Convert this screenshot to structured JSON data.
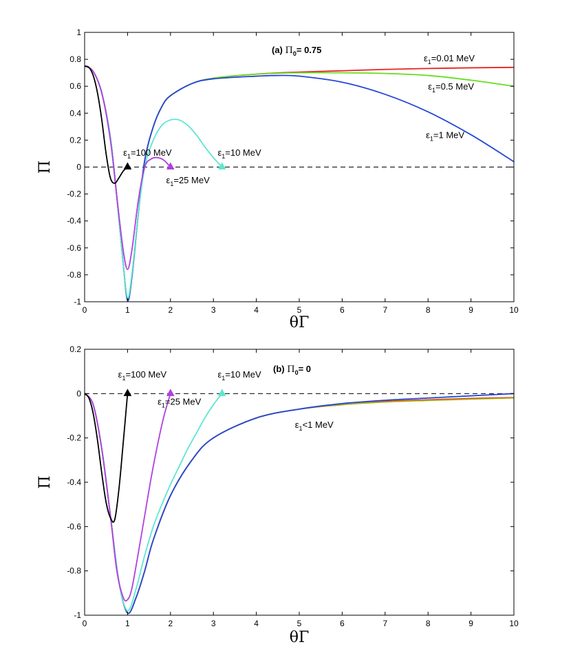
{
  "chart_data": [
    {
      "type": "line",
      "title": "(a) Π0= 0.75",
      "title_parts": {
        "prefix": "(a) ",
        "symbol": "Π",
        "sub": "0",
        "suffix": "= 0.75"
      },
      "xlabel": "θΓ",
      "ylabel": "Π",
      "xlim": [
        0,
        10
      ],
      "ylim": [
        -1,
        1
      ],
      "xticks": [
        "0",
        "1",
        "2",
        "3",
        "4",
        "5",
        "6",
        "7",
        "8",
        "9",
        "10"
      ],
      "yticks": [
        "-1",
        "-0.8",
        "-0.6",
        "-0.4",
        "-0.2",
        "0",
        "0.2",
        "0.4",
        "0.6",
        "0.8",
        "1"
      ],
      "grid": false,
      "reference_line": {
        "y": 0,
        "style": "dashed",
        "color": "#000000"
      },
      "series": [
        {
          "name": "ε1=0.01 MeV",
          "color": "#e8231f",
          "x": [
            0,
            0.2,
            0.4,
            0.6,
            0.75,
            0.9,
            1.0,
            1.1,
            1.25,
            1.4,
            1.6,
            1.8,
            2.0,
            2.5,
            3,
            4,
            5,
            6,
            7,
            8,
            9,
            10
          ],
          "y": [
            0.75,
            0.71,
            0.55,
            0.22,
            -0.22,
            -0.72,
            -0.99,
            -0.82,
            -0.35,
            0.05,
            0.3,
            0.45,
            0.53,
            0.62,
            0.66,
            0.69,
            0.705,
            0.715,
            0.725,
            0.732,
            0.737,
            0.74
          ]
        },
        {
          "name": "ε1=0.5 MeV",
          "color": "#66dd1f",
          "x": [
            0,
            0.2,
            0.4,
            0.6,
            0.75,
            0.9,
            1.0,
            1.1,
            1.25,
            1.4,
            1.6,
            1.8,
            2.0,
            2.5,
            3,
            4,
            5,
            6,
            7,
            8,
            9,
            10
          ],
          "y": [
            0.75,
            0.71,
            0.55,
            0.22,
            -0.22,
            -0.72,
            -0.99,
            -0.82,
            -0.35,
            0.05,
            0.3,
            0.45,
            0.53,
            0.62,
            0.66,
            0.69,
            0.7,
            0.7,
            0.695,
            0.68,
            0.645,
            0.6
          ]
        },
        {
          "name": "ε1=1 MeV",
          "color": "#2346d8",
          "x": [
            0,
            0.2,
            0.4,
            0.6,
            0.75,
            0.9,
            1.0,
            1.1,
            1.25,
            1.4,
            1.6,
            1.8,
            2.0,
            2.5,
            3,
            4,
            4.5,
            5,
            6,
            7,
            8,
            9,
            10
          ],
          "y": [
            0.75,
            0.71,
            0.55,
            0.22,
            -0.22,
            -0.72,
            -0.99,
            -0.82,
            -0.35,
            0.05,
            0.3,
            0.45,
            0.53,
            0.62,
            0.655,
            0.675,
            0.68,
            0.675,
            0.63,
            0.54,
            0.41,
            0.24,
            0.04
          ]
        },
        {
          "name": "ε1=10 MeV",
          "color": "#5ee6d2",
          "x": [
            0,
            0.2,
            0.4,
            0.6,
            0.75,
            0.9,
            1.0,
            1.1,
            1.25,
            1.4,
            1.6,
            1.8,
            2.0,
            2.2,
            2.4,
            2.6,
            2.8,
            3.0,
            3.2
          ],
          "y": [
            0.75,
            0.71,
            0.55,
            0.22,
            -0.22,
            -0.72,
            -0.97,
            -0.8,
            -0.35,
            0.0,
            0.2,
            0.31,
            0.35,
            0.35,
            0.31,
            0.24,
            0.15,
            0.07,
            0.0
          ],
          "end_marker": "triangle"
        },
        {
          "name": "ε1=25 MeV",
          "color": "#b040dd",
          "x": [
            0,
            0.2,
            0.4,
            0.6,
            0.75,
            0.9,
            1.0,
            1.1,
            1.25,
            1.4,
            1.55,
            1.7,
            1.85,
            2.0
          ],
          "y": [
            0.75,
            0.71,
            0.55,
            0.2,
            -0.22,
            -0.62,
            -0.76,
            -0.62,
            -0.25,
            0.0,
            0.06,
            0.07,
            0.05,
            0.0
          ],
          "end_marker": "triangle"
        },
        {
          "name": "ε1=100 MeV",
          "color": "#000000",
          "x": [
            0,
            0.1,
            0.2,
            0.3,
            0.4,
            0.5,
            0.6,
            0.7,
            0.8,
            0.9,
            1.0
          ],
          "y": [
            0.75,
            0.74,
            0.68,
            0.55,
            0.35,
            0.1,
            -0.08,
            -0.12,
            -0.08,
            -0.03,
            0.0
          ],
          "end_marker": "triangle"
        }
      ],
      "annotations": [
        {
          "text": "ε1=0.01 MeV",
          "base": "ε",
          "sub": "1",
          "rest": "=0.01 MeV",
          "x": 7.9,
          "y": 0.785
        },
        {
          "text": "ε1=0.5 MeV",
          "base": "ε",
          "sub": "1",
          "rest": "=0.5 MeV",
          "x": 8.0,
          "y": 0.575
        },
        {
          "text": "ε1=1 MeV",
          "base": "ε",
          "sub": "1",
          "rest": "=1 MeV",
          "x": 7.95,
          "y": 0.215
        },
        {
          "text": "ε1=100 MeV",
          "base": "ε",
          "sub": "1",
          "rest": "=100 MeV",
          "x": 0.9,
          "y": 0.085
        },
        {
          "text": "ε1=10 MeV",
          "base": "ε",
          "sub": "1",
          "rest": "=10 MeV",
          "x": 3.1,
          "y": 0.085
        },
        {
          "text": "ε1=25 MeV",
          "base": "ε",
          "sub": "1",
          "rest": "=25 MeV",
          "x": 1.9,
          "y": -0.12
        }
      ]
    },
    {
      "type": "line",
      "title": "(b) Π0= 0",
      "title_parts": {
        "prefix": "(b) ",
        "symbol": "Π",
        "sub": "0",
        "suffix": "= 0"
      },
      "xlabel": "θΓ",
      "ylabel": "Π",
      "xlim": [
        0,
        10
      ],
      "ylim": [
        -1,
        0.2
      ],
      "xticks": [
        "0",
        "1",
        "2",
        "3",
        "4",
        "5",
        "6",
        "7",
        "8",
        "9",
        "10"
      ],
      "yticks": [
        "-1",
        "-0.8",
        "-0.6",
        "-0.4",
        "-0.2",
        "0",
        "0.2"
      ],
      "grid": false,
      "reference_line": {
        "y": 0,
        "style": "dashed",
        "color": "#000000"
      },
      "series": [
        {
          "name": "ε1<1 MeV (0.01)",
          "color": "#e8231f",
          "x": [
            0,
            0.2,
            0.4,
            0.6,
            0.8,
            1.0,
            1.2,
            1.4,
            1.6,
            2.0,
            2.5,
            3,
            4,
            5,
            6,
            7,
            8,
            9,
            10
          ],
          "y": [
            0,
            -0.05,
            -0.25,
            -0.55,
            -0.85,
            -0.99,
            -0.92,
            -0.8,
            -0.66,
            -0.46,
            -0.3,
            -0.2,
            -0.11,
            -0.07,
            -0.05,
            -0.035,
            -0.028,
            -0.022,
            -0.018
          ]
        },
        {
          "name": "ε1<1 MeV (0.5)",
          "color": "#a8b31a",
          "x": [
            0,
            0.2,
            0.4,
            0.6,
            0.8,
            1.0,
            1.2,
            1.4,
            1.6,
            2.0,
            2.5,
            3,
            4,
            5,
            6,
            7,
            8,
            9,
            10
          ],
          "y": [
            0,
            -0.05,
            -0.25,
            -0.55,
            -0.85,
            -0.99,
            -0.92,
            -0.8,
            -0.66,
            -0.46,
            -0.3,
            -0.2,
            -0.11,
            -0.07,
            -0.05,
            -0.038,
            -0.031,
            -0.025,
            -0.02
          ]
        },
        {
          "name": "ε1<1 MeV (1)",
          "color": "#2346d8",
          "x": [
            0,
            0.2,
            0.4,
            0.6,
            0.8,
            1.0,
            1.2,
            1.4,
            1.6,
            2.0,
            2.5,
            3,
            4,
            5,
            6,
            7,
            8,
            9,
            10
          ],
          "y": [
            0,
            -0.05,
            -0.25,
            -0.55,
            -0.85,
            -0.99,
            -0.92,
            -0.8,
            -0.66,
            -0.46,
            -0.3,
            -0.2,
            -0.11,
            -0.07,
            -0.045,
            -0.03,
            -0.02,
            -0.01,
            0.0
          ]
        },
        {
          "name": "ε1=10 MeV",
          "color": "#5ee6d2",
          "x": [
            0,
            0.2,
            0.4,
            0.6,
            0.8,
            1.0,
            1.2,
            1.4,
            1.6,
            1.8,
            2.0,
            2.2,
            2.4,
            2.6,
            2.8,
            3.0,
            3.2
          ],
          "y": [
            0,
            -0.05,
            -0.25,
            -0.55,
            -0.85,
            -0.98,
            -0.88,
            -0.73,
            -0.6,
            -0.5,
            -0.41,
            -0.33,
            -0.25,
            -0.18,
            -0.11,
            -0.05,
            0.0
          ],
          "end_marker": "triangle"
        },
        {
          "name": "ε1=25 MeV",
          "color": "#b040dd",
          "x": [
            0,
            0.2,
            0.4,
            0.6,
            0.75,
            0.9,
            1.0,
            1.1,
            1.25,
            1.4,
            1.55,
            1.7,
            1.85,
            2.0
          ],
          "y": [
            0,
            -0.05,
            -0.25,
            -0.55,
            -0.8,
            -0.92,
            -0.93,
            -0.88,
            -0.72,
            -0.55,
            -0.38,
            -0.23,
            -0.1,
            0.0
          ],
          "end_marker": "triangle"
        },
        {
          "name": "ε1=100 MeV",
          "color": "#000000",
          "x": [
            0,
            0.1,
            0.2,
            0.3,
            0.4,
            0.5,
            0.6,
            0.7,
            0.8,
            0.9,
            1.0
          ],
          "y": [
            0,
            -0.02,
            -0.09,
            -0.21,
            -0.36,
            -0.49,
            -0.56,
            -0.57,
            -0.43,
            -0.22,
            0.0
          ],
          "end_marker": "triangle"
        }
      ],
      "annotations": [
        {
          "text": "ε1=100 MeV",
          "base": "ε",
          "sub": "1",
          "rest": "=100 MeV",
          "x": 0.78,
          "y": 0.072
        },
        {
          "text": "ε1=10 MeV",
          "base": "ε",
          "sub": "1",
          "rest": "=10 MeV",
          "x": 3.1,
          "y": 0.072
        },
        {
          "text": "ε1=25 MeV",
          "base": "ε",
          "sub": "1",
          "rest": "=25 MeV",
          "x": 1.7,
          "y": -0.05
        },
        {
          "text": "ε1<1 MeV",
          "base": "ε",
          "sub": "1",
          "rest": "<1 MeV",
          "x": 4.9,
          "y": -0.155
        }
      ]
    }
  ]
}
